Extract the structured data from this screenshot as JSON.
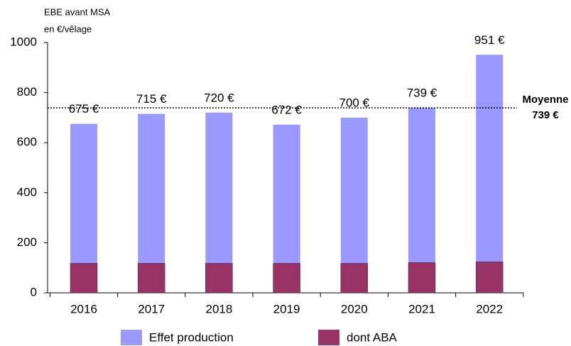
{
  "chart_data": {
    "type": "bar",
    "y_label": [
      "EBE avant MSA",
      "en €/vêlage"
    ],
    "categories": [
      "2016",
      "2017",
      "2018",
      "2019",
      "2020",
      "2021",
      "2022"
    ],
    "series": [
      {
        "name": "Effet production",
        "color": "#9999ff",
        "values": [
          675,
          715,
          720,
          672,
          700,
          739,
          951
        ],
        "value_labels": [
          "675 €",
          "715 €",
          "720 €",
          "672 €",
          "700 €",
          "739 €",
          "951 €"
        ]
      },
      {
        "name": "dont ABA",
        "color": "#993366",
        "values": [
          118,
          118,
          118,
          118,
          118,
          121,
          124
        ]
      }
    ],
    "average": {
      "value": 739,
      "label": "Moyenne",
      "value_label": "739 €"
    },
    "ylim": [
      0,
      1000
    ],
    "yticks": [
      0,
      200,
      400,
      600,
      800,
      1000
    ]
  }
}
